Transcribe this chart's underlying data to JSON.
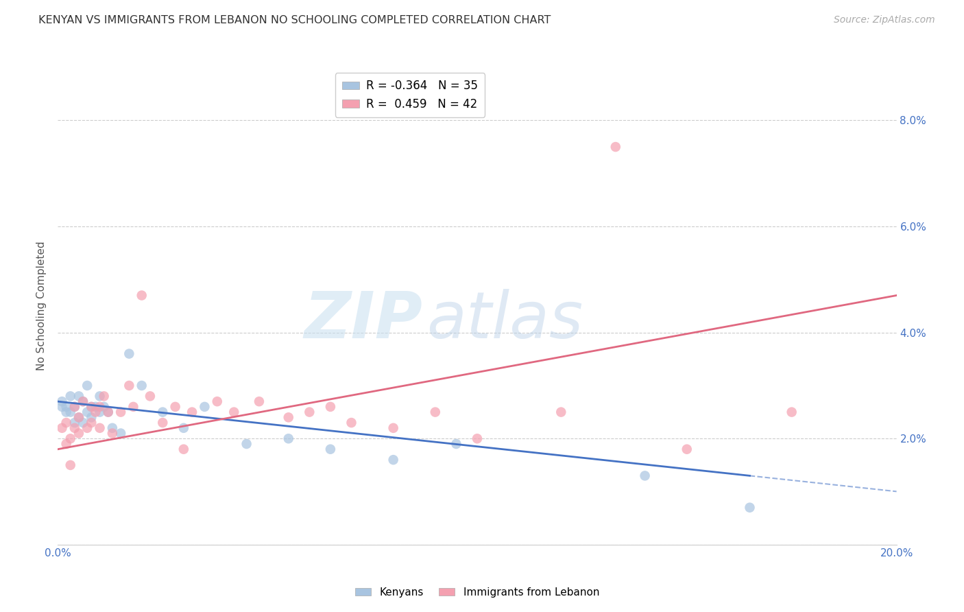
{
  "title": "KENYAN VS IMMIGRANTS FROM LEBANON NO SCHOOLING COMPLETED CORRELATION CHART",
  "source": "Source: ZipAtlas.com",
  "ylabel": "No Schooling Completed",
  "xlim": [
    0.0,
    0.2
  ],
  "ylim": [
    0.0,
    0.09
  ],
  "xticks": [
    0.0,
    0.04,
    0.08,
    0.12,
    0.16,
    0.2
  ],
  "yticks": [
    0.0,
    0.02,
    0.04,
    0.06,
    0.08
  ],
  "legend_r1": "R = -0.364",
  "legend_n1": "N = 35",
  "legend_r2": "R =  0.459",
  "legend_n2": "N = 42",
  "kenyan_color": "#a8c4e0",
  "lebanon_color": "#f4a0b0",
  "kenyan_line_color": "#4472c4",
  "lebanon_line_color": "#e06880",
  "background_color": "#ffffff",
  "kenyan_x": [
    0.001,
    0.001,
    0.002,
    0.002,
    0.003,
    0.003,
    0.004,
    0.004,
    0.005,
    0.005,
    0.006,
    0.006,
    0.007,
    0.007,
    0.008,
    0.008,
    0.009,
    0.01,
    0.01,
    0.011,
    0.012,
    0.013,
    0.015,
    0.017,
    0.02,
    0.025,
    0.03,
    0.035,
    0.045,
    0.055,
    0.065,
    0.08,
    0.095,
    0.14,
    0.165
  ],
  "kenyan_y": [
    0.026,
    0.027,
    0.026,
    0.025,
    0.028,
    0.025,
    0.026,
    0.023,
    0.028,
    0.024,
    0.027,
    0.023,
    0.03,
    0.025,
    0.026,
    0.024,
    0.026,
    0.028,
    0.025,
    0.026,
    0.025,
    0.022,
    0.021,
    0.036,
    0.03,
    0.025,
    0.022,
    0.026,
    0.019,
    0.02,
    0.018,
    0.016,
    0.019,
    0.013,
    0.007
  ],
  "lebanon_x": [
    0.001,
    0.002,
    0.002,
    0.003,
    0.003,
    0.004,
    0.004,
    0.005,
    0.005,
    0.006,
    0.007,
    0.008,
    0.008,
    0.009,
    0.01,
    0.01,
    0.011,
    0.012,
    0.013,
    0.015,
    0.017,
    0.018,
    0.02,
    0.022,
    0.025,
    0.028,
    0.03,
    0.032,
    0.038,
    0.042,
    0.048,
    0.055,
    0.06,
    0.065,
    0.07,
    0.08,
    0.09,
    0.1,
    0.12,
    0.133,
    0.15,
    0.175
  ],
  "lebanon_y": [
    0.022,
    0.023,
    0.019,
    0.02,
    0.015,
    0.022,
    0.026,
    0.024,
    0.021,
    0.027,
    0.022,
    0.026,
    0.023,
    0.025,
    0.026,
    0.022,
    0.028,
    0.025,
    0.021,
    0.025,
    0.03,
    0.026,
    0.047,
    0.028,
    0.023,
    0.026,
    0.018,
    0.025,
    0.027,
    0.025,
    0.027,
    0.024,
    0.025,
    0.026,
    0.023,
    0.022,
    0.025,
    0.02,
    0.025,
    0.075,
    0.018,
    0.025
  ],
  "kenyan_line_x0": 0.0,
  "kenyan_line_x1": 0.165,
  "kenyan_line_y0": 0.027,
  "kenyan_line_y1": 0.013,
  "lebanon_line_x0": 0.0,
  "lebanon_line_x1": 0.2,
  "lebanon_line_y0": 0.018,
  "lebanon_line_y1": 0.047
}
